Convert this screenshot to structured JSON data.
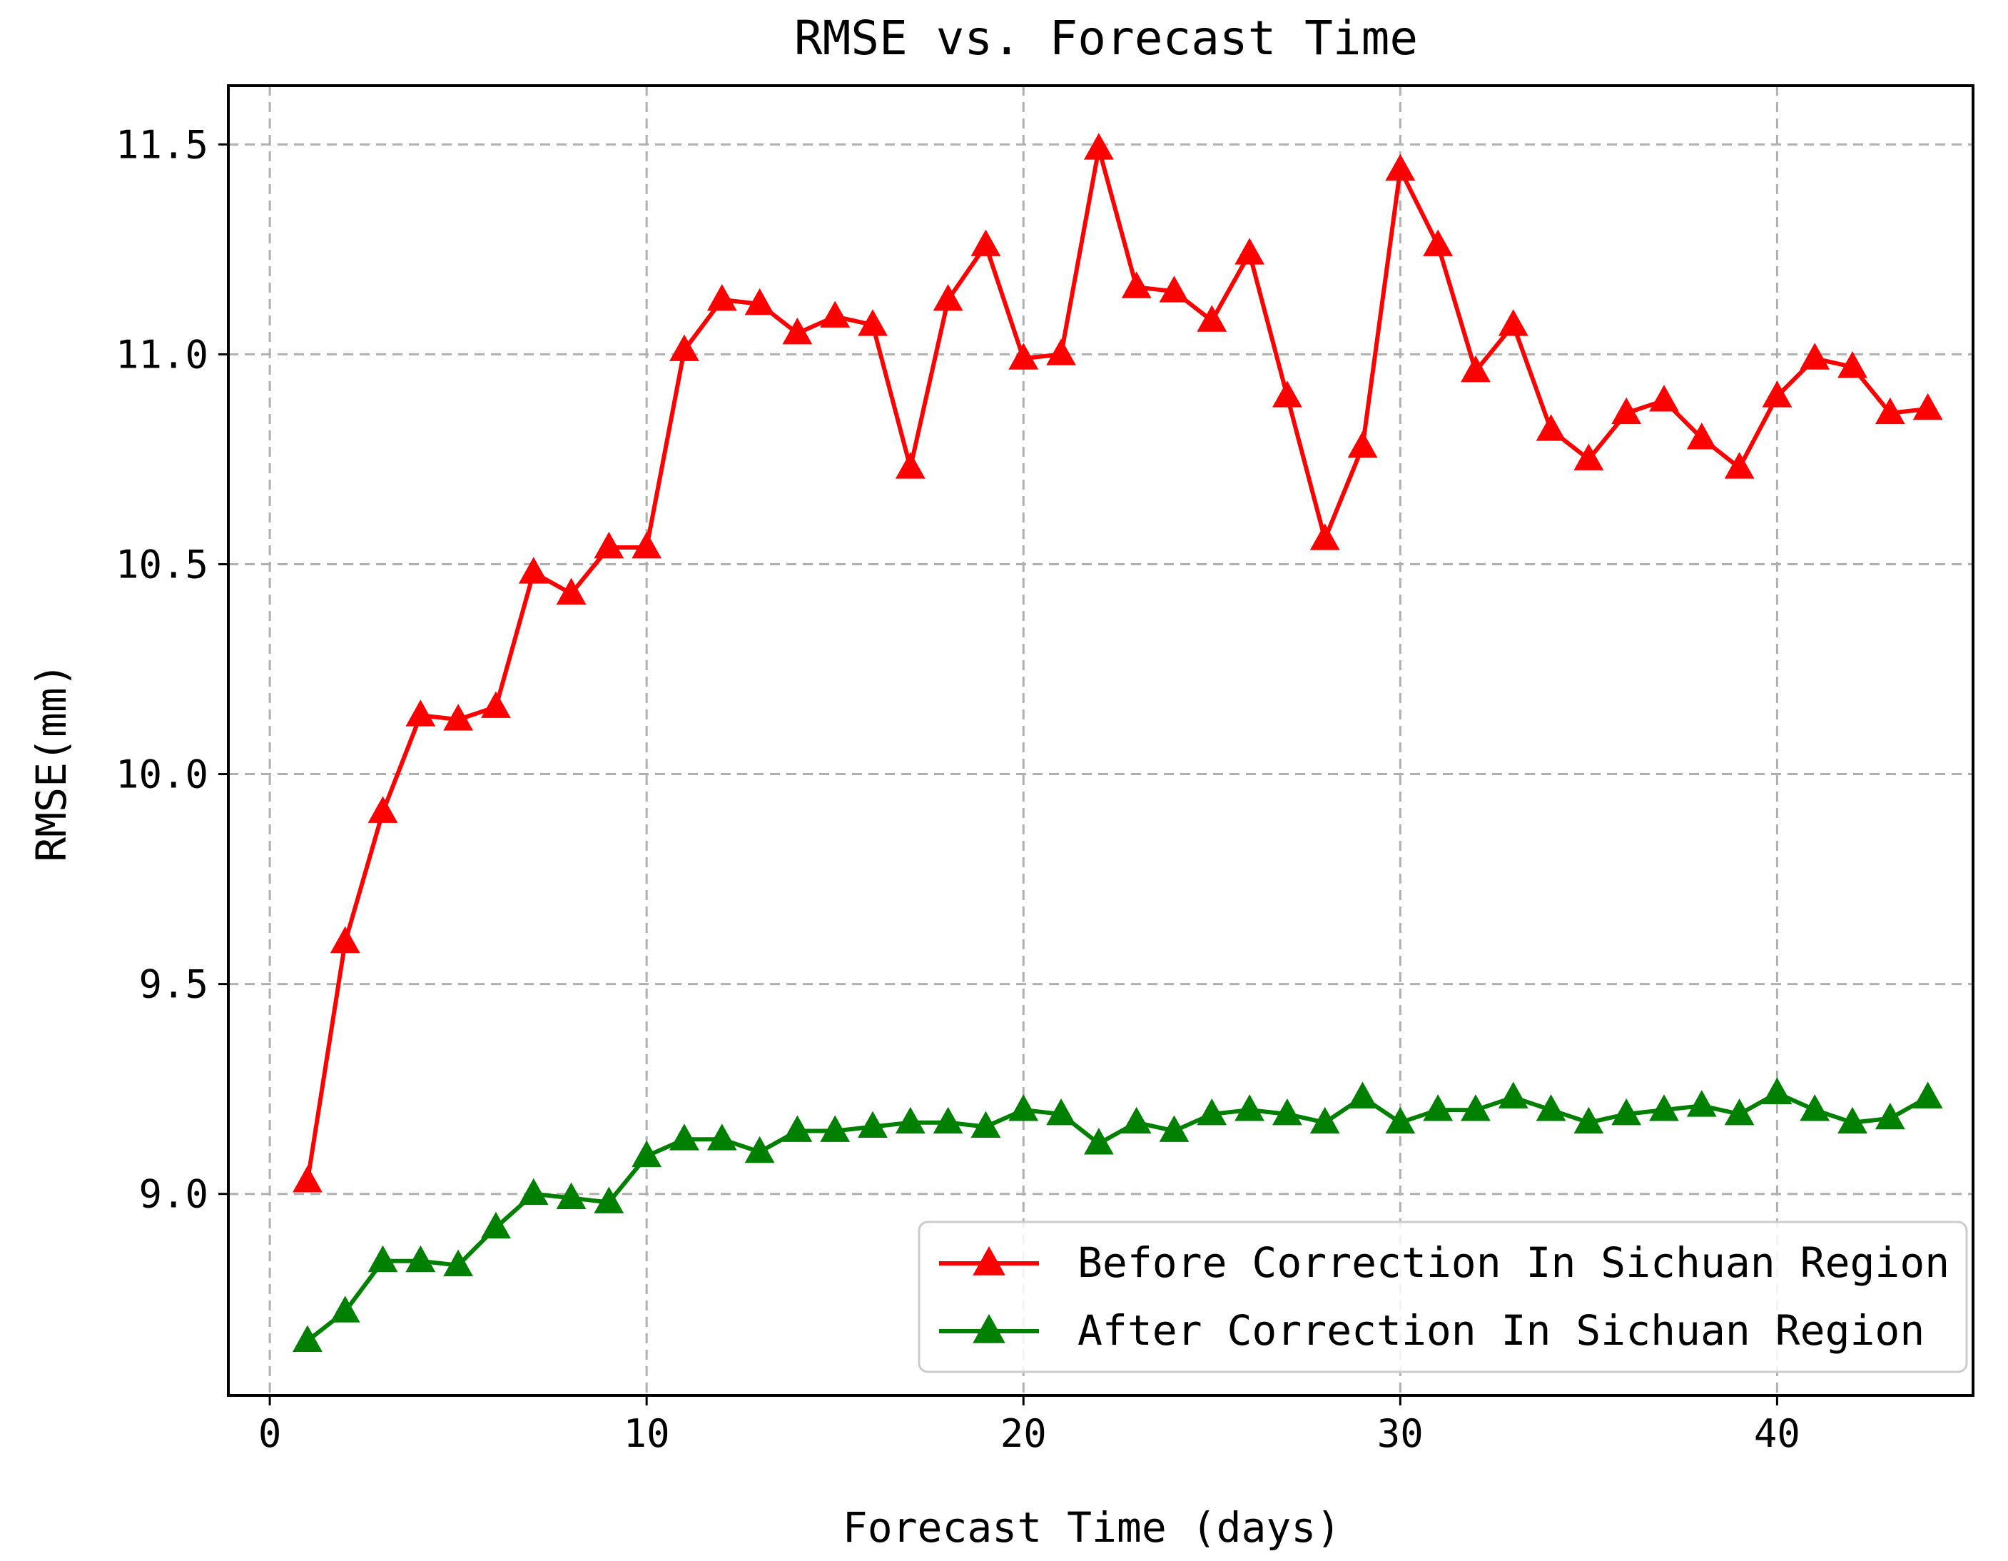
{
  "chart_data": {
    "type": "line",
    "title": "RMSE vs. Forecast Time",
    "xlabel": "Forecast Time (days)",
    "ylabel": "RMSE(mm)",
    "xlim": [
      -1.1,
      45.2
    ],
    "ylim": [
      8.52,
      11.64
    ],
    "xticks": [
      0,
      10,
      20,
      30,
      40
    ],
    "xtick_labels": [
      "0",
      "10",
      "20",
      "30",
      "40"
    ],
    "yticks": [
      9.0,
      9.5,
      10.0,
      10.5,
      11.0,
      11.5
    ],
    "ytick_labels": [
      "9.0",
      "9.5",
      "10.0",
      "10.5",
      "11.0",
      "11.5"
    ],
    "grid": true,
    "legend_position": "lower-right",
    "x": [
      1,
      2,
      3,
      4,
      5,
      6,
      7,
      8,
      9,
      10,
      11,
      12,
      13,
      14,
      15,
      16,
      17,
      18,
      19,
      20,
      21,
      22,
      23,
      24,
      25,
      26,
      27,
      28,
      29,
      30,
      31,
      32,
      33,
      34,
      35,
      36,
      37,
      38,
      39,
      40,
      41,
      42,
      43,
      44
    ],
    "series": [
      {
        "name": "Before Correction In Sichuan Region",
        "color": "#ff0000",
        "marker": "triangle-up",
        "values": [
          9.03,
          9.6,
          9.91,
          10.14,
          10.13,
          10.16,
          10.48,
          10.43,
          10.54,
          10.54,
          11.01,
          11.13,
          11.12,
          11.05,
          11.09,
          11.07,
          10.73,
          11.13,
          11.26,
          10.99,
          11.0,
          11.49,
          11.16,
          11.15,
          11.08,
          11.24,
          10.9,
          10.56,
          10.78,
          11.44,
          11.26,
          10.96,
          11.07,
          10.82,
          10.75,
          10.86,
          10.89,
          10.8,
          10.73,
          10.9,
          10.99,
          10.97,
          10.86,
          10.87
        ]
      },
      {
        "name": "After Correction In Sichuan Region",
        "color": "#008000",
        "marker": "triangle-up",
        "values": [
          8.65,
          8.72,
          8.84,
          8.84,
          8.83,
          8.92,
          9.0,
          8.99,
          8.98,
          9.09,
          9.13,
          9.13,
          9.1,
          9.15,
          9.15,
          9.16,
          9.17,
          9.17,
          9.16,
          9.2,
          9.19,
          9.12,
          9.17,
          9.15,
          9.19,
          9.2,
          9.19,
          9.17,
          9.23,
          9.17,
          9.2,
          9.2,
          9.23,
          9.2,
          9.17,
          9.19,
          9.2,
          9.21,
          9.19,
          9.24,
          9.2,
          9.17,
          9.18,
          9.23
        ]
      }
    ]
  }
}
